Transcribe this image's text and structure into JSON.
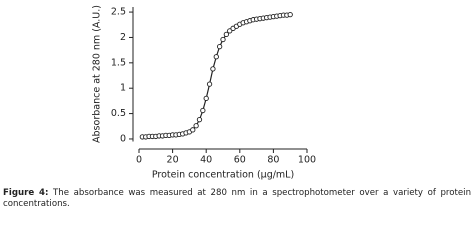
{
  "chart_data": {
    "type": "scatter",
    "xlabel": "Protein concentration (µg/mL)",
    "ylabel": "Absorbance at 280 nm (A.U.)",
    "x": [
      2,
      4,
      6,
      8,
      10,
      12,
      14,
      16,
      18,
      20,
      22,
      24,
      26,
      28,
      30,
      32,
      34,
      36,
      38,
      40,
      42,
      44,
      46,
      48,
      50,
      52,
      54,
      56,
      58,
      60,
      62,
      64,
      66,
      68,
      70,
      72,
      74,
      76,
      78,
      80,
      82,
      84,
      86,
      88,
      90
    ],
    "values": [
      0.04,
      0.04,
      0.05,
      0.05,
      0.05,
      0.06,
      0.06,
      0.07,
      0.07,
      0.08,
      0.08,
      0.09,
      0.1,
      0.12,
      0.14,
      0.18,
      0.26,
      0.38,
      0.56,
      0.8,
      1.08,
      1.38,
      1.62,
      1.82,
      1.96,
      2.06,
      2.13,
      2.18,
      2.22,
      2.26,
      2.29,
      2.31,
      2.33,
      2.35,
      2.36,
      2.37,
      2.38,
      2.39,
      2.4,
      2.41,
      2.42,
      2.43,
      2.44,
      2.44,
      2.45
    ],
    "color": "#222222",
    "xlim": [
      0,
      100
    ],
    "xticks": [
      0,
      20,
      40,
      60,
      80,
      100
    ],
    "ylim": [
      -0.05,
      2.6
    ],
    "yticks": [
      0,
      0.5,
      1.0,
      1.5,
      2.0,
      2.5
    ]
  },
  "caption": {
    "label": "Figure 4:",
    "text": "The absorbance was measured at 280 nm in a spectrophotometer over a variety of protein concentrations."
  }
}
